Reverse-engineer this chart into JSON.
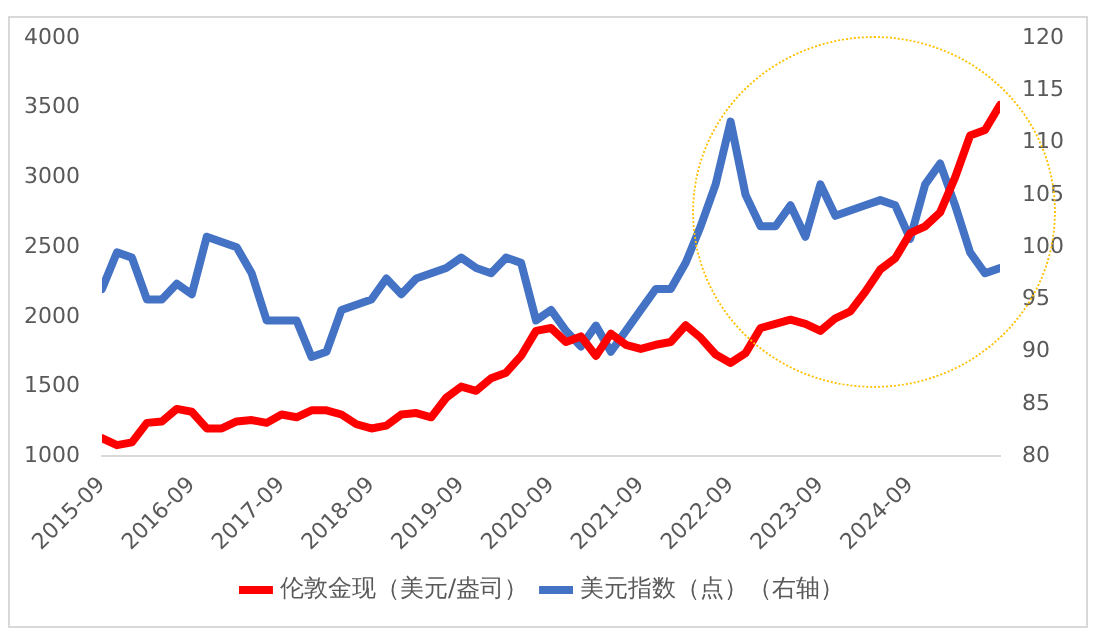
{
  "chart_data": {
    "type": "line",
    "x": [
      "2015-09",
      "2015-11",
      "2016-01",
      "2016-03",
      "2016-05",
      "2016-07",
      "2016-09",
      "2016-11",
      "2017-01",
      "2017-03",
      "2017-05",
      "2017-07",
      "2017-09",
      "2017-11",
      "2018-01",
      "2018-03",
      "2018-05",
      "2018-07",
      "2018-09",
      "2018-11",
      "2019-01",
      "2019-03",
      "2019-05",
      "2019-07",
      "2019-09",
      "2019-11",
      "2020-01",
      "2020-03",
      "2020-05",
      "2020-07",
      "2020-09",
      "2020-11",
      "2021-01",
      "2021-03",
      "2021-05",
      "2021-07",
      "2021-09",
      "2021-11",
      "2022-01",
      "2022-03",
      "2022-05",
      "2022-07",
      "2022-09",
      "2022-11",
      "2023-01",
      "2023-03",
      "2023-05",
      "2023-07",
      "2023-09",
      "2023-11",
      "2024-01",
      "2024-03",
      "2024-05",
      "2024-07",
      "2024-09",
      "2024-11",
      "2025-01",
      "2025-03",
      "2025-05",
      "2025-07",
      "2025-09"
    ],
    "series": [
      {
        "name": "伦敦金现（美元/盎司）",
        "color": "#ff0000",
        "values": [
          1130,
          1080,
          1100,
          1240,
          1250,
          1340,
          1320,
          1200,
          1200,
          1250,
          1260,
          1240,
          1300,
          1280,
          1330,
          1330,
          1300,
          1230,
          1200,
          1220,
          1300,
          1310,
          1280,
          1420,
          1500,
          1470,
          1560,
          1600,
          1720,
          1900,
          1920,
          1820,
          1860,
          1720,
          1880,
          1800,
          1770,
          1800,
          1820,
          1940,
          1850,
          1730,
          1670,
          1740,
          1920,
          1950,
          1980,
          1950,
          1900,
          1990,
          2040,
          2180,
          2340,
          2420,
          2600,
          2650,
          2750,
          3000,
          3300,
          3340,
          3520
        ]
      },
      {
        "name": "美元指数（点）（右轴）",
        "color": "#4472c4",
        "axis": "y2",
        "values": [
          96,
          99.5,
          99,
          95,
          95,
          96.5,
          95.5,
          101,
          100.5,
          100,
          97.5,
          93,
          93,
          93,
          89.5,
          90,
          94,
          94.5,
          95,
          97,
          95.5,
          97,
          97.5,
          98,
          99,
          98,
          97.5,
          99,
          98.5,
          93,
          94,
          92,
          90.5,
          92.5,
          90,
          92,
          94,
          96,
          96,
          98.5,
          102,
          106,
          112,
          105,
          102,
          102,
          104,
          101,
          106,
          103,
          103.5,
          104,
          104.5,
          104,
          100.8,
          106,
          108,
          104,
          99.5,
          97.5,
          98
        ]
      }
    ],
    "xlim": [
      "2015-09",
      "2025-09"
    ],
    "xticks": [
      "2015-09",
      "2016-09",
      "2017-09",
      "2018-09",
      "2019-09",
      "2020-09",
      "2021-09",
      "2022-09",
      "2023-09",
      "2024-09"
    ],
    "ylim": [
      1000,
      4000
    ],
    "yticks": [
      1000,
      1500,
      2000,
      2500,
      3000,
      3500,
      4000
    ],
    "y2lim": [
      80,
      120
    ],
    "y2ticks": [
      80,
      85,
      90,
      95,
      100,
      105,
      110,
      115,
      120
    ],
    "grid": false,
    "legend": "bottom",
    "marker": "none",
    "line_style": "solid"
  }
}
